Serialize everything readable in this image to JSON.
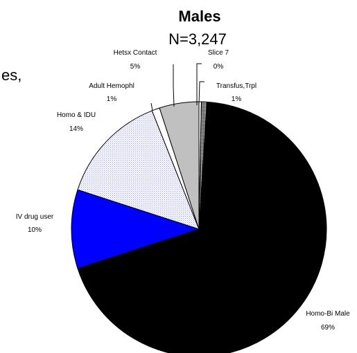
{
  "chart_data": {
    "type": "pie",
    "title": "Males",
    "subtitle": "N=3,247",
    "slices": [
      {
        "label": "Homo-Bi Male",
        "percent_label": "69%",
        "value": 69,
        "color": "#000000"
      },
      {
        "label": "IV drug user",
        "percent_label": "10%",
        "value": 10,
        "color": "#0000ff"
      },
      {
        "label": "Homo & IDU",
        "percent_label": "14%",
        "value": 14,
        "color": "#e8e8ff"
      },
      {
        "label": "Adult Hemophl",
        "percent_label": "1%",
        "value": 1,
        "color": "#ffffff"
      },
      {
        "label": "Hetsx Contact",
        "percent_label": "5%",
        "value": 5,
        "color": "#c0c0c0"
      },
      {
        "label": "Slice 7",
        "percent_label": "0%",
        "value": 0.3,
        "color": "#ffffff"
      },
      {
        "label": "Transfus,Trpl",
        "percent_label": "1%",
        "value": 0.7,
        "color": "#6677ff"
      }
    ]
  },
  "page": {
    "clipped_text_left": "es,"
  }
}
